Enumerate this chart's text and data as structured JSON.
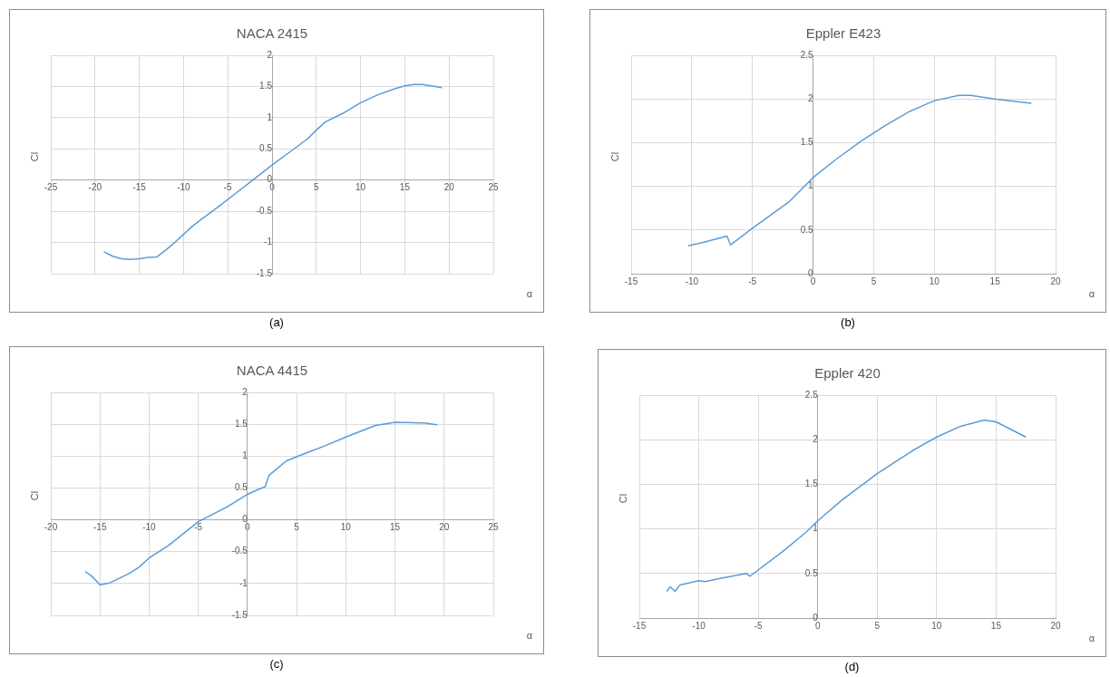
{
  "chart_data": [
    {
      "type": "line",
      "title": "NACA 2415",
      "xlabel": "α",
      "ylabel": "Cl",
      "annotations": [
        "(a)"
      ],
      "grid": true,
      "xlim": [
        -25,
        25
      ],
      "xticks": [
        -25,
        -20,
        -15,
        -10,
        -5,
        0,
        5,
        10,
        15,
        20,
        25
      ],
      "ylim": [
        -1.5,
        2
      ],
      "yticks": [
        -1.5,
        -1,
        -0.5,
        0,
        0.5,
        1,
        1.5,
        2
      ],
      "series": [
        {
          "color": "#5b9bd5",
          "x": [
            -19,
            -18,
            -17,
            -16,
            -15,
            -14,
            -13,
            -12,
            -11,
            -10,
            -9,
            -8,
            -6,
            -4,
            -2,
            0,
            2,
            4,
            5,
            6,
            8,
            10,
            12,
            14,
            15,
            16,
            17,
            18,
            19.2
          ],
          "values": [
            -1.15,
            -1.22,
            -1.26,
            -1.27,
            -1.26,
            -1.24,
            -1.23,
            -1.12,
            -1.0,
            -0.87,
            -0.74,
            -0.63,
            -0.42,
            -0.2,
            0.02,
            0.24,
            0.45,
            0.66,
            0.8,
            0.93,
            1.07,
            1.24,
            1.37,
            1.47,
            1.51,
            1.53,
            1.53,
            1.51,
            1.48
          ]
        }
      ]
    },
    {
      "type": "line",
      "title": "Eppler E423",
      "xlabel": "α",
      "ylabel": "Cl",
      "annotations": [
        "(b)"
      ],
      "grid": true,
      "xlim": [
        -15,
        20
      ],
      "xticks": [
        -15,
        -10,
        -5,
        0,
        5,
        10,
        15,
        20
      ],
      "ylim": [
        0,
        2.5
      ],
      "yticks": [
        0,
        0.5,
        1,
        1.5,
        2,
        2.5
      ],
      "series": [
        {
          "color": "#5b9bd5",
          "x": [
            -10.3,
            -9,
            -7.1,
            -6.8,
            -5,
            -2,
            0,
            2,
            4,
            6,
            8,
            10,
            12,
            13,
            15,
            18
          ],
          "values": [
            0.32,
            0.36,
            0.43,
            0.33,
            0.52,
            0.82,
            1.1,
            1.32,
            1.52,
            1.7,
            1.86,
            1.98,
            2.04,
            2.04,
            2.0,
            1.95
          ]
        }
      ]
    },
    {
      "type": "line",
      "title": "NACA 4415",
      "xlabel": "α",
      "ylabel": "Cl",
      "annotations": [
        "(c)"
      ],
      "grid": true,
      "xlim": [
        -20,
        25
      ],
      "xticks": [
        -20,
        -15,
        -10,
        -5,
        0,
        5,
        10,
        15,
        20,
        25
      ],
      "ylim": [
        -1.5,
        2
      ],
      "yticks": [
        -1.5,
        -1,
        -0.5,
        0,
        0.5,
        1,
        1.5,
        2
      ],
      "series": [
        {
          "color": "#5b9bd5",
          "x": [
            -16.5,
            -15.8,
            -15,
            -14,
            -12,
            -11,
            -10,
            -8,
            -5,
            -2,
            0,
            1,
            1.8,
            2.2,
            4,
            6,
            8,
            10,
            13,
            15,
            18,
            19.3
          ],
          "values": [
            -0.81,
            -0.89,
            -1.02,
            -0.99,
            -0.84,
            -0.74,
            -0.6,
            -0.4,
            -0.03,
            0.21,
            0.4,
            0.47,
            0.52,
            0.7,
            0.93,
            1.05,
            1.17,
            1.3,
            1.48,
            1.53,
            1.52,
            1.49
          ]
        }
      ]
    },
    {
      "type": "line",
      "title": "Eppler 420",
      "xlabel": "α",
      "ylabel": "Cl",
      "annotations": [
        "(d)"
      ],
      "grid": true,
      "xlim": [
        -15,
        20
      ],
      "xticks": [
        -15,
        -10,
        -5,
        0,
        5,
        10,
        15,
        20
      ],
      "ylim": [
        0,
        2.5
      ],
      "yticks": [
        0,
        0.5,
        1,
        1.5,
        2,
        2.5
      ],
      "series": [
        {
          "color": "#5b9bd5",
          "x": [
            -12.7,
            -12.4,
            -12,
            -11.6,
            -10,
            -9.5,
            -8,
            -6,
            -5.7,
            -3,
            -1,
            0,
            2,
            5,
            8,
            10,
            12,
            14,
            15,
            17.5
          ],
          "values": [
            0.3,
            0.35,
            0.3,
            0.37,
            0.42,
            0.41,
            0.45,
            0.5,
            0.47,
            0.74,
            0.96,
            1.09,
            1.32,
            1.62,
            1.88,
            2.03,
            2.15,
            2.22,
            2.2,
            2.03
          ]
        }
      ]
    }
  ]
}
